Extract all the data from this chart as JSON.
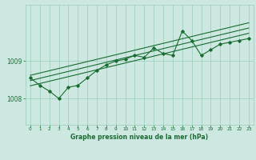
{
  "bg_color": "#cce8e0",
  "plot_bg": "#cce8e0",
  "grid_color": "#99ccbb",
  "line_color": "#1a6b32",
  "title": "Graphe pression niveau de la mer (hPa)",
  "xlim": [
    -0.5,
    23.5
  ],
  "ylim": [
    1007.3,
    1010.5
  ],
  "x_ticks": [
    0,
    1,
    2,
    3,
    4,
    5,
    6,
    7,
    8,
    9,
    10,
    11,
    12,
    13,
    14,
    15,
    16,
    17,
    18,
    19,
    20,
    21,
    22,
    23
  ],
  "y_ticks": [
    1008,
    1009
  ],
  "pressure_data": [
    1008.55,
    1008.35,
    1008.2,
    1008.0,
    1008.3,
    1008.35,
    1008.55,
    1008.75,
    1008.9,
    1009.0,
    1009.05,
    1009.15,
    1009.1,
    1009.35,
    1009.2,
    1009.15,
    1009.8,
    1009.55,
    1009.15,
    1009.3,
    1009.45,
    1009.5,
    1009.55,
    1009.6
  ],
  "trend_line": [
    [
      0,
      1008.48
    ],
    [
      23,
      1009.88
    ]
  ],
  "upper_line": [
    [
      0,
      1008.62
    ],
    [
      23,
      1010.02
    ]
  ],
  "lower_line": [
    [
      0,
      1008.34
    ],
    [
      23,
      1009.74
    ]
  ]
}
